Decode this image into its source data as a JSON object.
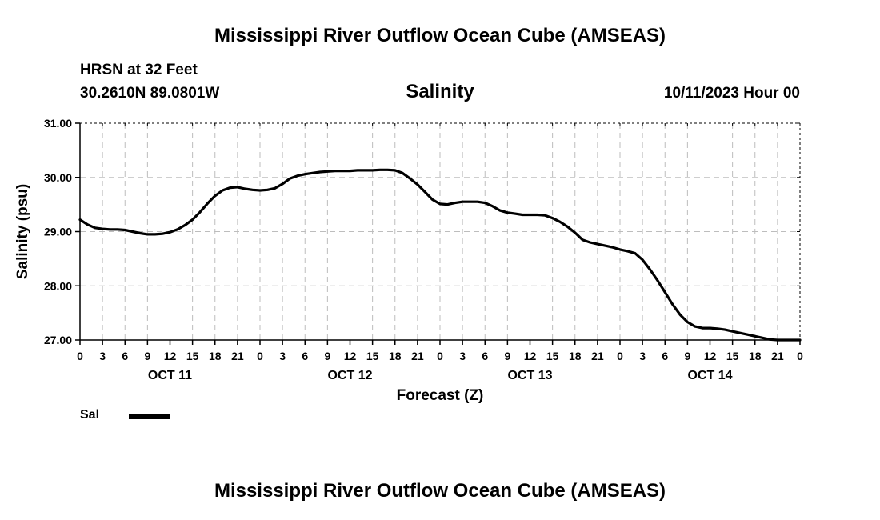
{
  "header": {
    "title": "Mississippi River Outflow Ocean Cube (AMSEAS)",
    "station": "HRSN at 32 Feet",
    "coords": "30.2610N  89.0801W",
    "chart_title": "Salinity",
    "run_time": "10/11/2023 Hour 00"
  },
  "legend": {
    "label": "Sal",
    "color": "#000000"
  },
  "footer": {
    "title": "Mississippi River Outflow Ocean Cube (AMSEAS)"
  },
  "chart_data": {
    "type": "line",
    "title": "Salinity",
    "xlabel": "Forecast (Z)",
    "ylabel": "Salinity (psu)",
    "ylim": [
      27.0,
      31.0
    ],
    "xlim": [
      0,
      96
    ],
    "yticks": [
      27.0,
      28.0,
      29.0,
      30.0,
      31.0
    ],
    "ytick_labels": [
      "27.00",
      "28.00",
      "29.00",
      "30.00",
      "31.00"
    ],
    "xticks": [
      0,
      3,
      6,
      9,
      12,
      15,
      18,
      21,
      24,
      27,
      30,
      33,
      36,
      39,
      42,
      45,
      48,
      51,
      54,
      57,
      60,
      63,
      66,
      69,
      72,
      75,
      78,
      81,
      84,
      87,
      90,
      93,
      96
    ],
    "xtick_labels": [
      "0",
      "3",
      "6",
      "9",
      "12",
      "15",
      "18",
      "21",
      "0",
      "3",
      "6",
      "9",
      "12",
      "15",
      "18",
      "21",
      "0",
      "3",
      "6",
      "9",
      "12",
      "15",
      "18",
      "21",
      "0",
      "3",
      "6",
      "9",
      "12",
      "15",
      "18",
      "21",
      "0"
    ],
    "day_labels": [
      {
        "text": "OCT 11",
        "hour": 12
      },
      {
        "text": "OCT 12",
        "hour": 36
      },
      {
        "text": "OCT 13",
        "hour": 60
      },
      {
        "text": "OCT 14",
        "hour": 84
      }
    ],
    "grid": true,
    "series": [
      {
        "name": "Sal",
        "color": "#000000",
        "x": [
          0,
          1,
          2,
          3,
          4,
          5,
          6,
          7,
          8,
          9,
          10,
          11,
          12,
          13,
          14,
          15,
          16,
          17,
          18,
          19,
          20,
          21,
          22,
          23,
          24,
          25,
          26,
          27,
          28,
          29,
          30,
          31,
          32,
          33,
          34,
          35,
          36,
          37,
          38,
          39,
          40,
          41,
          42,
          43,
          44,
          45,
          46,
          47,
          48,
          49,
          50,
          51,
          52,
          53,
          54,
          55,
          56,
          57,
          58,
          59,
          60,
          61,
          62,
          63,
          64,
          65,
          66,
          67,
          68,
          69,
          70,
          71,
          72,
          73,
          74,
          75,
          76,
          77,
          78,
          79,
          80,
          81,
          82,
          83,
          84,
          85,
          86,
          87,
          88,
          89,
          90,
          91,
          92,
          93,
          94,
          95,
          96
        ],
        "values": [
          29.22,
          29.13,
          29.07,
          29.05,
          29.04,
          29.04,
          29.03,
          29.0,
          28.97,
          28.95,
          28.95,
          28.96,
          28.99,
          29.04,
          29.12,
          29.22,
          29.36,
          29.52,
          29.66,
          29.76,
          29.81,
          29.82,
          29.79,
          29.77,
          29.76,
          29.77,
          29.8,
          29.88,
          29.98,
          30.03,
          30.06,
          30.08,
          30.1,
          30.11,
          30.12,
          30.12,
          30.12,
          30.13,
          30.13,
          30.13,
          30.14,
          30.14,
          30.13,
          30.08,
          29.98,
          29.87,
          29.73,
          29.59,
          29.51,
          29.5,
          29.53,
          29.55,
          29.55,
          29.55,
          29.53,
          29.47,
          29.39,
          29.35,
          29.33,
          29.31,
          29.31,
          29.31,
          29.3,
          29.25,
          29.18,
          29.09,
          28.98,
          28.85,
          28.8,
          28.77,
          28.74,
          28.71,
          28.67,
          28.64,
          28.6,
          28.48,
          28.3,
          28.1,
          27.88,
          27.66,
          27.47,
          27.33,
          27.25,
          27.22,
          27.22,
          27.21,
          27.19,
          27.16,
          27.13,
          27.1,
          27.07,
          27.04,
          27.01,
          27.0,
          27.0,
          27.0,
          27.0
        ]
      }
    ]
  }
}
